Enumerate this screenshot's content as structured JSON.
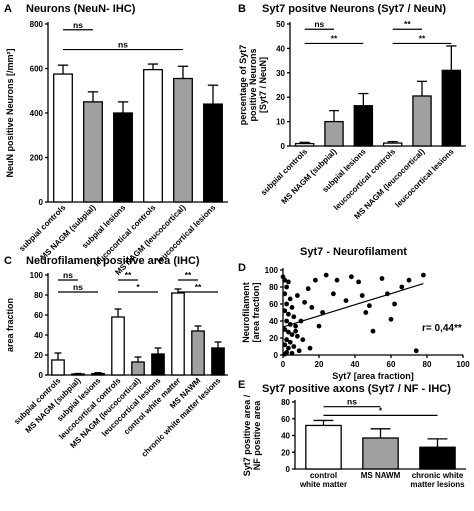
{
  "chart_data": [
    {
      "panel": "A",
      "type": "bar",
      "title": "Neurons (NeuN- IHC)",
      "ylabel_lines": [
        "NeuN positive Neurons [/mm²]"
      ],
      "ylim": [
        0,
        800
      ],
      "yticks": [
        0,
        200,
        400,
        600,
        800
      ],
      "categories": [
        "subpial controls",
        "MS NAGM (subpial)",
        "subpial lesions",
        "leucocortical controls",
        "MS NAGM (leucocortical)",
        "leucocortical lesions"
      ],
      "values": [
        575,
        450,
        400,
        595,
        555,
        440
      ],
      "errors": [
        40,
        45,
        50,
        25,
        55,
        85
      ],
      "colors": [
        "#ffffff",
        "#a0a0a0",
        "#000000",
        "#ffffff",
        "#a0a0a0",
        "#000000"
      ],
      "significance": [
        {
          "from": 0,
          "to": 1,
          "label": "ns",
          "level": 2
        },
        {
          "from": 0,
          "to": 4,
          "label": "ns",
          "level": 1
        }
      ]
    },
    {
      "panel": "B",
      "type": "bar",
      "title": "Syt7 positve Neurons (Syt7 / NeuN)",
      "ylabel_lines": [
        "percentage of Syt7",
        "positive Neurons",
        "[Syt7 / NeuN]"
      ],
      "ylim": [
        0,
        50
      ],
      "yticks": [
        0,
        10,
        20,
        30,
        40,
        50
      ],
      "categories": [
        "subpial controls",
        "MS NAGM (subpial)",
        "subpial lesions",
        "leucocortical controls",
        "MS NAGM (leucocortical)",
        "leucocortical lesions"
      ],
      "values": [
        1,
        10,
        16.5,
        1.2,
        20.5,
        31
      ],
      "errors": [
        0.5,
        4.5,
        5,
        0.6,
        6,
        10
      ],
      "colors": [
        "#ffffff",
        "#a0a0a0",
        "#000000",
        "#ffffff",
        "#a0a0a0",
        "#000000"
      ],
      "significance": [
        {
          "from": 0,
          "to": 1,
          "label": "ns",
          "level": 2
        },
        {
          "from": 0,
          "to": 2,
          "label": "**",
          "level": 1
        },
        {
          "from": 3,
          "to": 4,
          "label": "**",
          "level": 2
        },
        {
          "from": 3,
          "to": 5,
          "label": "**",
          "level": 1
        }
      ]
    },
    {
      "panel": "C",
      "type": "bar",
      "title": "Neurofilament positive area (IHC)",
      "ylabel_lines": [
        "area fraction"
      ],
      "ylim": [
        0,
        100
      ],
      "yticks": [
        0,
        20,
        40,
        60,
        80,
        100
      ],
      "categories": [
        "subpial controls",
        "MS NAGM (subpial)",
        "subpial lesions",
        "leucocortical controls",
        "MS NAGM (leucocortical)",
        "leucocortical lesions",
        "control white matter",
        "MS NAWM",
        "chronic white matter lesions"
      ],
      "values": [
        15,
        1,
        1.5,
        58,
        13,
        21,
        82,
        44,
        27
      ],
      "errors": [
        7,
        0.5,
        0.8,
        8,
        5,
        6,
        4,
        5,
        6
      ],
      "colors": [
        "#ffffff",
        "#a0a0a0",
        "#000000",
        "#ffffff",
        "#a0a0a0",
        "#000000",
        "#ffffff",
        "#a0a0a0",
        "#000000"
      ],
      "significance": [
        {
          "from": 0,
          "to": 1,
          "label": "ns",
          "level": 2
        },
        {
          "from": 0,
          "to": 2,
          "label": "ns",
          "level": 1
        },
        {
          "from": 3,
          "to": 4,
          "label": "**",
          "level": 2
        },
        {
          "from": 3,
          "to": 5,
          "label": "*",
          "level": 1
        },
        {
          "from": 6,
          "to": 7,
          "label": "**",
          "level": 2
        },
        {
          "from": 6,
          "to": 8,
          "label": "**",
          "level": 1
        }
      ]
    },
    {
      "panel": "D",
      "type": "scatter",
      "title": "Syt7 - Neurofilament",
      "xlabel": "Syt7 [area fraction]",
      "ylabel_lines": [
        "Neurofilament",
        "[area fraction]"
      ],
      "xlim": [
        0,
        100
      ],
      "ylim": [
        0,
        100
      ],
      "xticks": [
        0,
        20,
        40,
        60,
        80,
        100
      ],
      "yticks": [
        0,
        20,
        40,
        60,
        80,
        100
      ],
      "annotation": "r= 0,44**",
      "trendline": {
        "x": [
          0,
          78
        ],
        "y": [
          33,
          84
        ]
      },
      "points": [
        [
          0,
          92
        ],
        [
          1,
          88
        ],
        [
          3,
          86
        ],
        [
          2,
          80
        ],
        [
          1,
          72
        ],
        [
          4,
          66
        ],
        [
          2,
          60
        ],
        [
          5,
          56
        ],
        [
          1,
          52
        ],
        [
          3,
          48
        ],
        [
          6,
          45
        ],
        [
          2,
          40
        ],
        [
          4,
          36
        ],
        [
          7,
          34
        ],
        [
          1,
          30
        ],
        [
          3,
          27
        ],
        [
          5,
          24
        ],
        [
          8,
          22
        ],
        [
          2,
          18
        ],
        [
          4,
          15
        ],
        [
          1,
          12
        ],
        [
          6,
          10
        ],
        [
          3,
          8
        ],
        [
          9,
          5
        ],
        [
          2,
          3
        ],
        [
          5,
          2
        ],
        [
          1,
          1
        ],
        [
          7,
          28
        ],
        [
          10,
          40
        ],
        [
          12,
          62
        ],
        [
          14,
          78
        ],
        [
          16,
          56
        ],
        [
          18,
          88
        ],
        [
          20,
          34
        ],
        [
          22,
          50
        ],
        [
          8,
          70
        ],
        [
          11,
          18
        ],
        [
          15,
          8
        ],
        [
          24,
          94
        ],
        [
          28,
          72
        ],
        [
          30,
          88
        ],
        [
          35,
          64
        ],
        [
          38,
          92
        ],
        [
          42,
          86
        ],
        [
          44,
          70
        ],
        [
          46,
          50
        ],
        [
          48,
          58
        ],
        [
          50,
          28
        ],
        [
          55,
          90
        ],
        [
          58,
          72
        ],
        [
          60,
          42
        ],
        [
          62,
          60
        ],
        [
          66,
          80
        ],
        [
          70,
          88
        ],
        [
          74,
          5
        ],
        [
          78,
          94
        ]
      ]
    },
    {
      "panel": "E",
      "type": "bar",
      "title": "Syt7 positive axons (Syt7 / NF - IHC)",
      "ylabel_lines": [
        "Syt7 positive area /",
        "NF positive area"
      ],
      "ylim": [
        0,
        80
      ],
      "yticks": [
        0,
        20,
        40,
        60,
        80
      ],
      "categories": [
        "control white matter",
        "MS NAWM",
        "chronic white matter lesions"
      ],
      "category_lines": [
        [
          "control",
          "white matter"
        ],
        [
          "MS NAWM"
        ],
        [
          "chronic white",
          "matter lesions"
        ]
      ],
      "values": [
        52,
        37,
        26
      ],
      "errors": [
        6,
        11,
        10
      ],
      "colors": [
        "#ffffff",
        "#a0a0a0",
        "#000000"
      ],
      "significance": [
        {
          "from": 0,
          "to": 1,
          "label": "ns",
          "level": 2
        },
        {
          "from": 0,
          "to": 2,
          "label": "*",
          "level": 1
        }
      ]
    }
  ]
}
